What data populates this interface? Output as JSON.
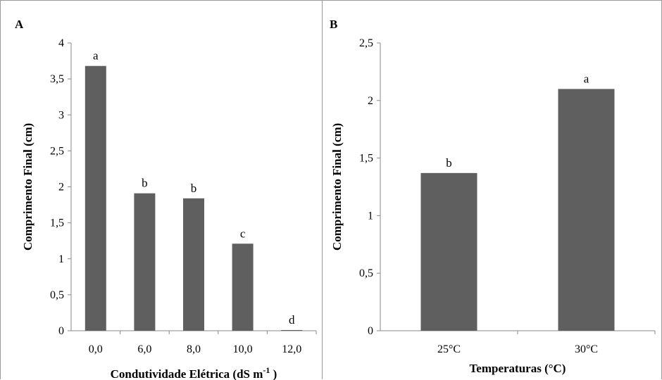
{
  "panels": [
    {
      "letter": "A",
      "chart_data": {
        "type": "bar",
        "categories": [
          "0,0",
          "6,0",
          "8,0",
          "10,0",
          "12,0"
        ],
        "values": [
          3.68,
          1.91,
          1.84,
          1.21,
          0.01
        ],
        "bar_labels": [
          "a",
          "b",
          "b",
          "c",
          "d"
        ],
        "ylim": [
          0,
          4
        ],
        "yticks": [
          "0",
          "0,5",
          "1",
          "1,5",
          "2",
          "2,5",
          "3",
          "3,5",
          "4"
        ],
        "ylabel": "Comprimento Final (cm)",
        "xlabel": "Condutividade Elétrica  (dS m",
        "xlabel_sup": "-1",
        "xlabel_suffix": " )",
        "grid": false,
        "bar_color": "#5f5f5f"
      }
    },
    {
      "letter": "B",
      "chart_data": {
        "type": "bar",
        "categories": [
          "25°C",
          "30°C"
        ],
        "values": [
          1.37,
          2.1
        ],
        "bar_labels": [
          "b",
          "a"
        ],
        "ylim": [
          0,
          2.5
        ],
        "yticks": [
          "0",
          "0,5",
          "1",
          "1,5",
          "2",
          "2,5"
        ],
        "ylabel": "Comprimento Final (cm)",
        "xlabel": "Temperaturas (°C)",
        "grid": false,
        "bar_color": "#5f5f5f"
      }
    }
  ]
}
